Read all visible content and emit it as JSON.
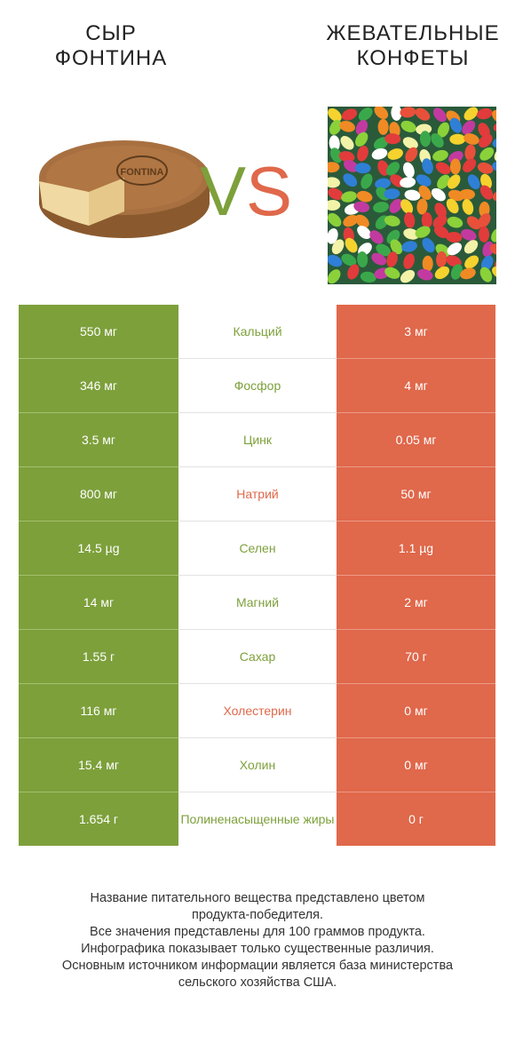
{
  "left_product": {
    "title_line1": "СЫР",
    "title_line2": "ФОНТИНА",
    "image_label": "FONTINA",
    "color": "#7da03b"
  },
  "right_product": {
    "title_line1": "ЖЕВАТЕЛЬНЫЕ",
    "title_line2": "КОНФЕТЫ",
    "color": "#e0684b"
  },
  "vs": {
    "v": "V",
    "s": "S"
  },
  "rows": [
    {
      "nutrient": "Кальций",
      "left": "550 мг",
      "right": "3 мг",
      "winner": "left"
    },
    {
      "nutrient": "Фосфор",
      "left": "346 мг",
      "right": "4 мг",
      "winner": "left"
    },
    {
      "nutrient": "Цинк",
      "left": "3.5 мг",
      "right": "0.05 мг",
      "winner": "left"
    },
    {
      "nutrient": "Натрий",
      "left": "800 мг",
      "right": "50 мг",
      "winner": "right"
    },
    {
      "nutrient": "Селен",
      "left": "14.5 µg",
      "right": "1.1 µg",
      "winner": "left"
    },
    {
      "nutrient": "Магний",
      "left": "14 мг",
      "right": "2 мг",
      "winner": "left"
    },
    {
      "nutrient": "Сахар",
      "left": "1.55 г",
      "right": "70 г",
      "winner": "left"
    },
    {
      "nutrient": "Холестерин",
      "left": "116 мг",
      "right": "0 мг",
      "winner": "right"
    },
    {
      "nutrient": "Холин",
      "left": "15.4 мг",
      "right": "0 мг",
      "winner": "left"
    },
    {
      "nutrient": "Полиненасыщенные жиры",
      "left": "1.654 г",
      "right": "0 г",
      "winner": "left"
    }
  ],
  "footer": {
    "line1": "Название питательного вещества представлено цветом",
    "line2": "продукта-победителя.",
    "line3": "Все значения представлены для 100 граммов продукта.",
    "line4": "Инфографика показывает только существенные различия.",
    "line5": "Основным источником информации является база министерства",
    "line6": "сельского хозяйства США."
  }
}
